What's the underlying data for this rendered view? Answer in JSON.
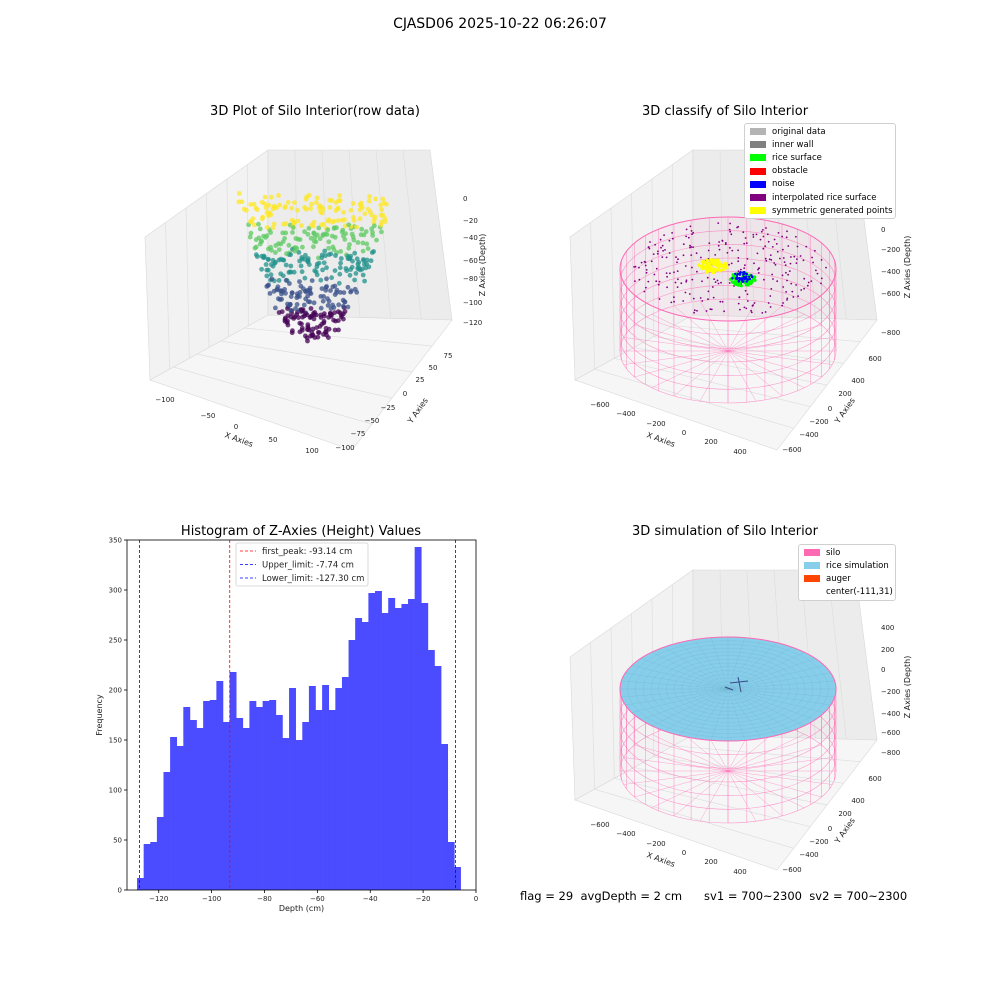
{
  "figure": {
    "suptitle": "CJASD06 2025-10-22 06:26:07",
    "footer": {
      "flag": "flag = 29",
      "avg_depth": "avgDepth = 2 cm",
      "sv1": "sv1 = 700~2300",
      "sv2": "sv2 = 700~2300"
    }
  },
  "chart_data": [
    {
      "type": "scatter",
      "subtype": "3d-scatter",
      "title": "3D Plot of Silo Interior(row data)",
      "xlabel": "X Axies",
      "ylabel": "Y Axies",
      "zlabel": "Z Axies (Depth)",
      "x_ticks": [
        "−100",
        "−50",
        "0",
        "50",
        "100"
      ],
      "y_ticks": [
        "−100",
        "−75",
        "−50",
        "−25",
        "0",
        "25",
        "50",
        "75"
      ],
      "z_ticks": [
        "0",
        "−20",
        "−40",
        "−60",
        "−80",
        "−100",
        "−120"
      ],
      "colormap": "viridis",
      "colors": [
        "#440154",
        "#3b528b",
        "#21918c",
        "#5ec962",
        "#fde725"
      ],
      "grid": true,
      "zlim": [
        -130,
        0
      ]
    },
    {
      "type": "scatter",
      "subtype": "3d-classification",
      "title": "3D classify of Silo Interior",
      "xlabel": "X Axies",
      "ylabel": "Y Axies",
      "zlabel": "Z Axies (Depth)",
      "x_ticks": [
        "−600",
        "−400",
        "−200",
        "0",
        "200",
        "400"
      ],
      "y_ticks": [
        "−600",
        "−400",
        "−200",
        "0",
        "200",
        "400",
        "600"
      ],
      "z_ticks": [
        "200",
        "0",
        "−200",
        "−400",
        "−600",
        "−800"
      ],
      "legend_position": "top-right",
      "legend": [
        {
          "label": "original data",
          "color": "#b4b4b4"
        },
        {
          "label": "inner wall",
          "color": "#808080"
        },
        {
          "label": "rice surface",
          "color": "#00ff00"
        },
        {
          "label": "obstacle",
          "color": "#ff0000"
        },
        {
          "label": "noise",
          "color": "#0000ff"
        },
        {
          "label": "interpolated rice surface",
          "color": "#800080"
        },
        {
          "label": "symmetric generated points",
          "color": "#ffff00"
        }
      ],
      "wall_color": "#ff69b4",
      "grid": true
    },
    {
      "type": "bar",
      "subtype": "histogram",
      "title": "Histogram of Z-Axies (Height) Values",
      "xlabel": "Depth (cm)",
      "ylabel": "Frequency",
      "xlim": [
        -132,
        0
      ],
      "ylim": [
        0,
        350
      ],
      "x_ticks": [
        -120,
        -100,
        -80,
        -60,
        -40,
        -20,
        0
      ],
      "y_ticks": [
        0,
        50,
        100,
        150,
        200,
        250,
        300,
        350
      ],
      "bar_color": "#4b4bff",
      "bin_start": -128.2,
      "bin_width": 2.5,
      "values": [
        12,
        46,
        48,
        73,
        118,
        153,
        144,
        183,
        170,
        162,
        189,
        190,
        209,
        168,
        218,
        172,
        162,
        189,
        183,
        189,
        190,
        175,
        152,
        202,
        150,
        168,
        204,
        180,
        205,
        180,
        202,
        213,
        250,
        272,
        268,
        297,
        299,
        277,
        292,
        282,
        286,
        291,
        343,
        287,
        240,
        224,
        146,
        48
      ],
      "extra_bar": {
        "value": 23
      },
      "lines": [
        {
          "label": "first_peak: -93.14 cm",
          "x": -93.14,
          "color": "#ff0000"
        },
        {
          "label": "Upper_limit: -7.74 cm",
          "x": -7.74,
          "color": "#0000ff"
        },
        {
          "label": "Lower_limit: -127.30 cm",
          "x": -127.3,
          "color": "#0000ff"
        }
      ],
      "legend_position": "top-center"
    },
    {
      "type": "scatter",
      "subtype": "3d-simulation",
      "title": "3D simulation of Silo Interior",
      "xlabel": "X Axies",
      "ylabel": "Y Axies",
      "zlabel": "Z Axies (Depth)",
      "x_ticks": [
        "−600",
        "−400",
        "−200",
        "0",
        "200",
        "400"
      ],
      "y_ticks": [
        "−600",
        "−400",
        "−200",
        "0",
        "200",
        "400",
        "600"
      ],
      "z_ticks": [
        "400",
        "200",
        "0",
        "−200",
        "−400",
        "−600",
        "−800"
      ],
      "legend_position": "top-right",
      "legend": [
        {
          "label": "silo",
          "color": "#ff69b4"
        },
        {
          "label": "rice simulation",
          "color": "#87ceeb"
        },
        {
          "label": "auger",
          "color": "#ff4500"
        },
        {
          "label": "center(-111,31)",
          "color": ""
        }
      ],
      "grid": true
    }
  ]
}
